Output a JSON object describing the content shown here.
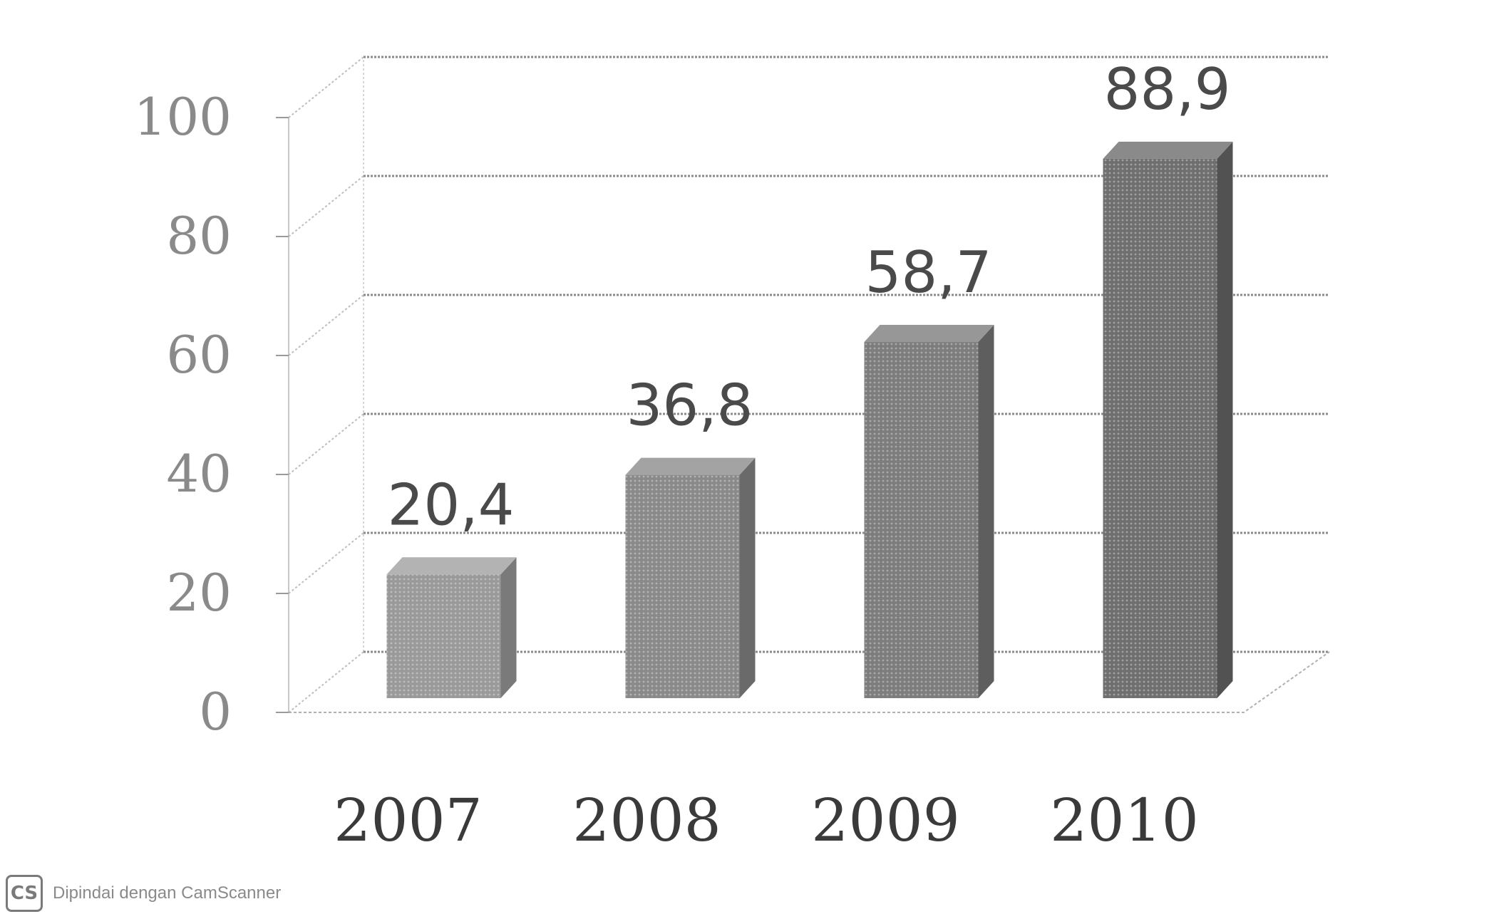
{
  "chart_data": {
    "type": "bar",
    "categories": [
      "2007",
      "2008",
      "2009",
      "2010"
    ],
    "values": [
      20.4,
      36.8,
      58.7,
      88.9
    ],
    "value_labels": [
      "20,4",
      "36,8",
      "58,7",
      "88,9"
    ],
    "y_ticks": [
      "0",
      "20",
      "40",
      "60",
      "80",
      "100"
    ],
    "ylim": [
      0,
      100
    ],
    "grid": true,
    "style": "3d-bars"
  },
  "footer": {
    "logo_text": "CS",
    "text": "Dipindai dengan CamScanner"
  }
}
